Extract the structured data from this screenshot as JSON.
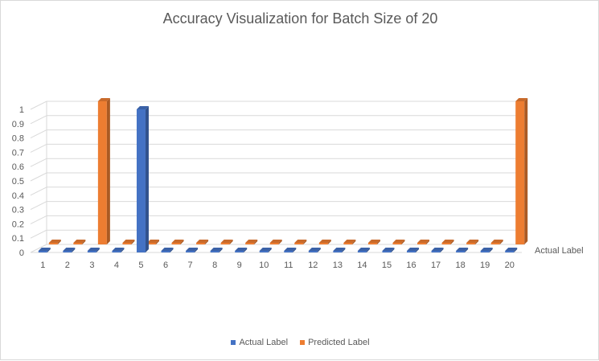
{
  "chart_data": {
    "type": "bar",
    "title": "Accuracy Visualization for Batch Size of 20",
    "xlabel": "",
    "ylabel": "",
    "ylim": [
      0,
      1
    ],
    "yticks": [
      "0",
      "0.1",
      "0.2",
      "0.3",
      "0.4",
      "0.5",
      "0.6",
      "0.7",
      "0.8",
      "0.9",
      "1"
    ],
    "categories": [
      "1",
      "2",
      "3",
      "4",
      "5",
      "6",
      "7",
      "8",
      "9",
      "10",
      "11",
      "12",
      "13",
      "14",
      "15",
      "16",
      "17",
      "18",
      "19",
      "20"
    ],
    "depth_axis_labels": [
      "Actual Label"
    ],
    "grid": true,
    "legend_position": "bottom",
    "series": [
      {
        "name": "Actual Label",
        "color": "#4472c4",
        "values": [
          0,
          0,
          0,
          0,
          1,
          0,
          0,
          0,
          0,
          0,
          0,
          0,
          0,
          0,
          0,
          0,
          0,
          0,
          0,
          0
        ]
      },
      {
        "name": "Predicted Label",
        "color": "#ed7d31",
        "values": [
          0,
          0,
          1,
          0,
          0,
          0,
          0,
          0,
          0,
          0,
          0,
          0,
          0,
          0,
          0,
          0,
          0,
          0,
          0,
          1
        ]
      }
    ]
  }
}
